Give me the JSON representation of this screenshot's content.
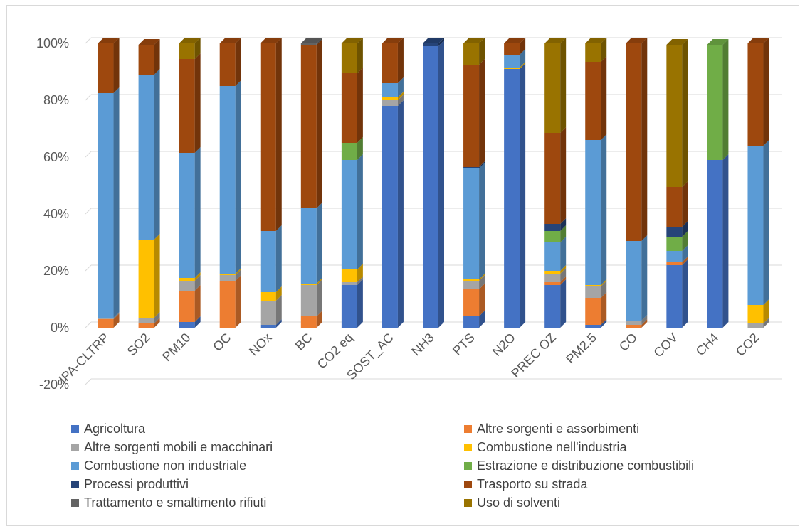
{
  "chart_data": {
    "type": "bar",
    "stacked": true,
    "percent_stacked": true,
    "categories": [
      "IPA-CLTRP",
      "SO2",
      "PM10",
      "OC",
      "NOx",
      "BC",
      "CO2 eq",
      "SOST_AC",
      "NH3",
      "PTS",
      "N2O",
      "PREC OZ",
      "PM2.5",
      "CO",
      "COV",
      "CH4",
      "CO2"
    ],
    "y_ticks": [
      "-20%",
      "0%",
      "20%",
      "40%",
      "60%",
      "80%",
      "100%"
    ],
    "ylim": [
      -20,
      100
    ],
    "grid": true,
    "legend_position": "bottom",
    "series": [
      {
        "name": "Agricoltura",
        "color": "#4472c4",
        "values": [
          0,
          0,
          2,
          0,
          1,
          0,
          15,
          78,
          99,
          4,
          91,
          15,
          1,
          0,
          22,
          59,
          0
        ]
      },
      {
        "name": "Altre sorgenti e assorbimenti",
        "color": "#ed7d31",
        "values": [
          3,
          1.5,
          11,
          16.5,
          0,
          4,
          0,
          0,
          0,
          9.5,
          0,
          1,
          9.5,
          1,
          1,
          0,
          0
        ]
      },
      {
        "name": "Altre sorgenti mobili e macchinari",
        "color": "#a5a5a5",
        "values": [
          0.5,
          2,
          3.5,
          2,
          8.5,
          11,
          1,
          2,
          0,
          3,
          0,
          3,
          4,
          1.5,
          0,
          0,
          1.5
        ]
      },
      {
        "name": "Combustione nell'industria",
        "color": "#ffc000",
        "values": [
          0,
          27.5,
          1,
          0.5,
          3,
          0.5,
          4.5,
          1,
          0,
          0.5,
          0.5,
          1,
          0.5,
          0,
          0,
          0,
          6.5
        ]
      },
      {
        "name": "Combustione non industriale",
        "color": "#5b9bd5",
        "values": [
          79,
          58,
          44,
          66,
          21.5,
          26.5,
          38.5,
          5,
          0,
          39,
          4.5,
          10,
          51,
          28,
          4,
          0,
          56
        ]
      },
      {
        "name": "Estrazione e distribuzione combustibili",
        "color": "#70ad47",
        "values": [
          0,
          0,
          0,
          0,
          0,
          0,
          6,
          0,
          0,
          0,
          0,
          4,
          0,
          0,
          5,
          40.5,
          0
        ]
      },
      {
        "name": "Processi produttivi",
        "color": "#264478",
        "values": [
          0,
          0,
          0,
          0,
          0,
          0,
          0,
          0,
          1,
          0.5,
          0,
          2.5,
          0,
          0,
          3.5,
          0,
          0
        ]
      },
      {
        "name": "Trasporto su strada",
        "color": "#9e480e",
        "values": [
          17.5,
          10.5,
          33,
          15,
          66,
          57.5,
          24.5,
          14,
          0,
          36,
          4,
          32,
          27.5,
          69.5,
          14,
          0,
          36
        ]
      },
      {
        "name": "Trattamento e smaltimento rifiuti",
        "color": "#636363",
        "values": [
          0,
          0,
          0,
          0,
          0,
          0.5,
          0,
          0,
          0,
          0,
          0,
          0,
          0,
          0,
          0,
          0,
          0
        ]
      },
      {
        "name": "Uso di solventi",
        "color": "#997300",
        "values": [
          0,
          0,
          5.5,
          0,
          0,
          0,
          10.5,
          0,
          0,
          7.5,
          0,
          31.5,
          6.5,
          0,
          50,
          0,
          0
        ]
      }
    ]
  }
}
